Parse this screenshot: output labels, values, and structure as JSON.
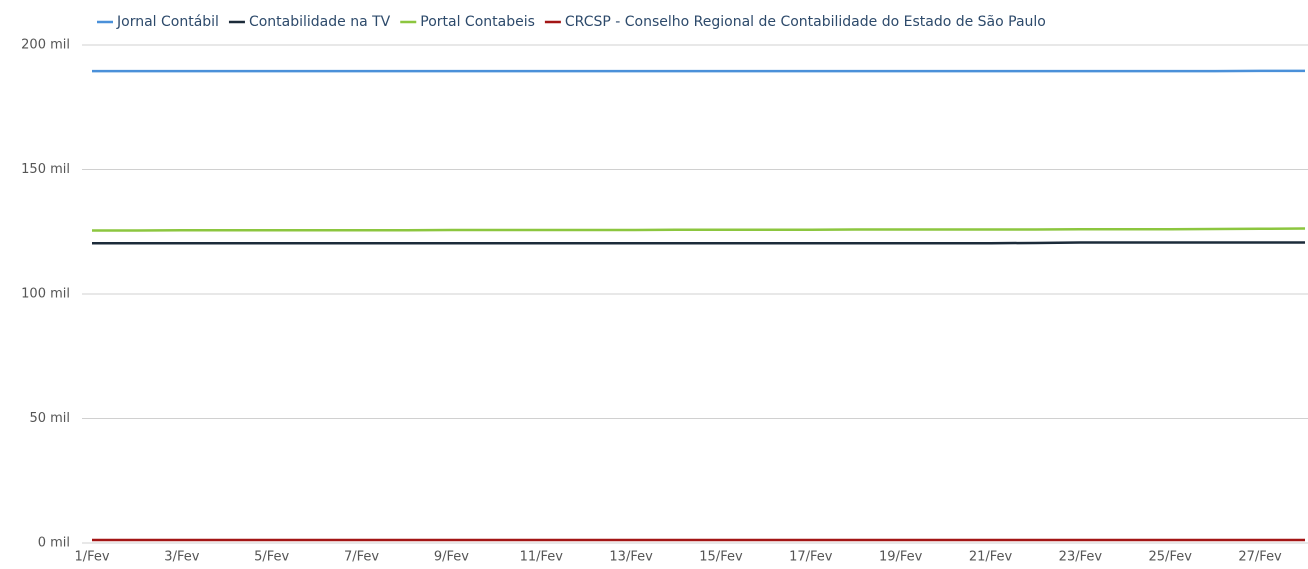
{
  "chart_data": {
    "type": "line",
    "categories": [
      "1/Fev",
      null,
      "3/Fev",
      null,
      "5/Fev",
      null,
      "7/Fev",
      null,
      "9/Fev",
      null,
      "11/Fev",
      null,
      "13/Fev",
      null,
      "15/Fev",
      null,
      "17/Fev",
      null,
      "19/Fev",
      null,
      "21/Fev",
      null,
      "23/Fev",
      null,
      "25/Fev",
      null,
      "27/Fev",
      null
    ],
    "series": [
      {
        "name": "Jornal Contábil",
        "color": "#4a90d9",
        "values": [
          189500,
          189500,
          189500,
          189500,
          189500,
          189500,
          189500,
          189500,
          189500,
          189500,
          189500,
          189500,
          189500,
          189500,
          189500,
          189500,
          189500,
          189500,
          189500,
          189500,
          189500,
          189500,
          189500,
          189500,
          189500,
          189500,
          189600,
          189600
        ]
      },
      {
        "name": "Contabilidade na TV",
        "color": "#1c2b3a",
        "values": [
          120400,
          120400,
          120400,
          120400,
          120400,
          120400,
          120400,
          120400,
          120400,
          120400,
          120400,
          120400,
          120400,
          120400,
          120400,
          120400,
          120400,
          120400,
          120400,
          120400,
          120400,
          120500,
          120700,
          120700,
          120700,
          120700,
          120700,
          120700
        ]
      },
      {
        "name": "Portal Contabeis",
        "color": "#8cc63f",
        "values": [
          125500,
          125500,
          125600,
          125600,
          125600,
          125600,
          125600,
          125600,
          125700,
          125700,
          125700,
          125700,
          125700,
          125800,
          125800,
          125800,
          125800,
          125900,
          125900,
          125900,
          125900,
          125900,
          126000,
          126000,
          126000,
          126100,
          126200,
          126300
        ]
      },
      {
        "name": "CRCSP - Conselho Regional de Contabilidade do Estado de São Paulo",
        "color": "#a31515",
        "values": [
          1200,
          1200,
          1200,
          1200,
          1200,
          1200,
          1200,
          1200,
          1200,
          1200,
          1200,
          1200,
          1200,
          1200,
          1200,
          1200,
          1200,
          1200,
          1200,
          1200,
          1200,
          1200,
          1200,
          1200,
          1200,
          1200,
          1200,
          1200
        ]
      }
    ],
    "ylim": [
      0,
      200000
    ],
    "yticks": [
      {
        "value": 0,
        "label": "0 mil"
      },
      {
        "value": 50000,
        "label": "50 mil"
      },
      {
        "value": 100000,
        "label": "100 mil"
      },
      {
        "value": 150000,
        "label": "150 mil"
      },
      {
        "value": 200000,
        "label": "200 mil"
      }
    ],
    "grid": true,
    "legend": "top"
  }
}
